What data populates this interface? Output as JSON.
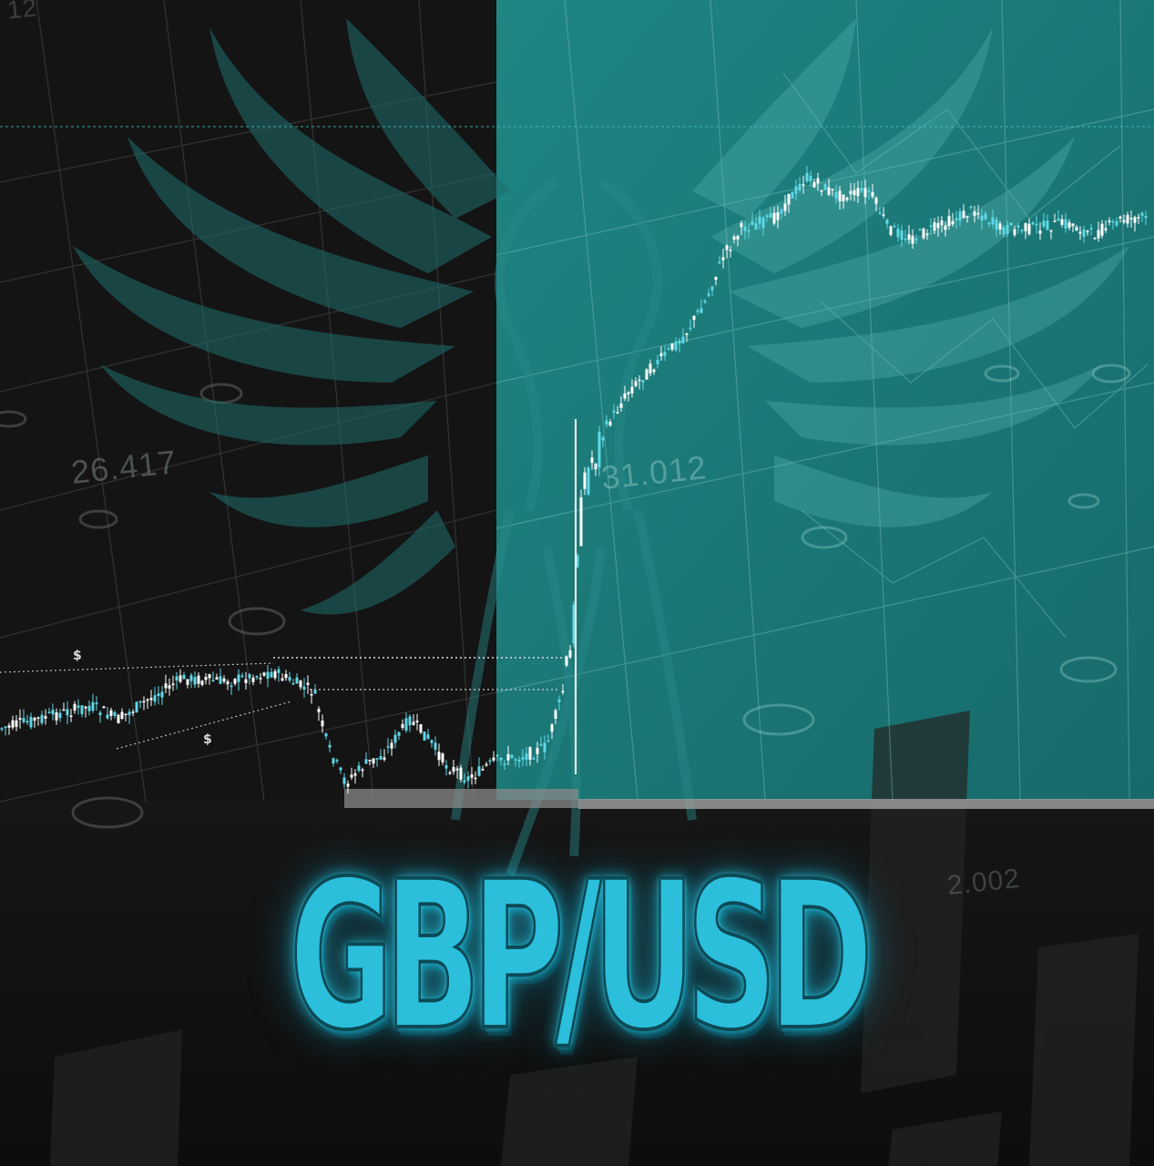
{
  "title": "GBP/USD",
  "background_labels": [
    "26.417",
    "31.012",
    "2.002",
    "12"
  ],
  "markers": [
    "$",
    "$"
  ],
  "colors": {
    "teal_panel": "#1a7a7a",
    "dark_bg": "#121212",
    "accent": "#2bbfdc",
    "candle_up": "#ffffff",
    "candle_down": "#5fd8e6"
  },
  "icons": [
    "phoenix-emblem-icon",
    "network-grid-icon",
    "dollar-marker-icon"
  ]
}
